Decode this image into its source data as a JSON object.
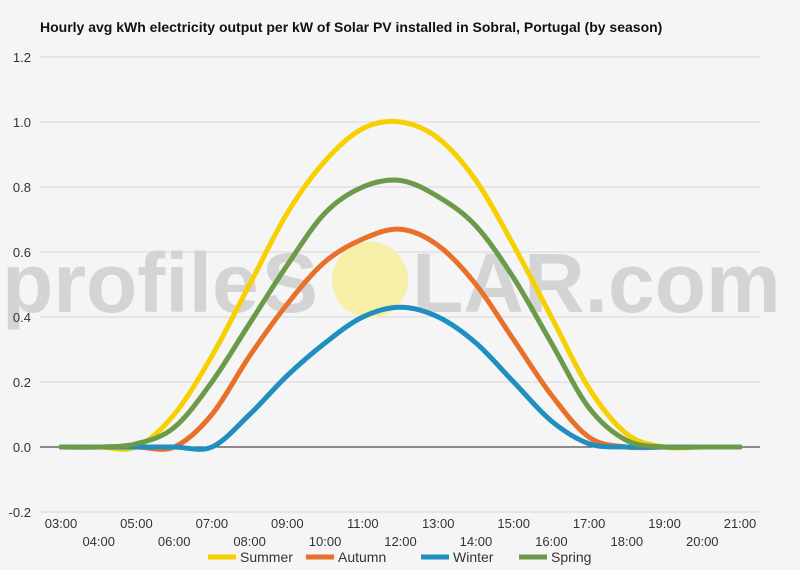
{
  "chart_data": {
    "type": "line",
    "title": "Hourly avg kWh electricity output per kW of Solar PV installed in Sobral, Portugal (by season)",
    "xlabel": "",
    "ylabel": "",
    "ylim": [
      -0.2,
      1.2
    ],
    "yticks": [
      -0.2,
      0.0,
      0.2,
      0.4,
      0.6,
      0.8,
      1.0,
      1.2
    ],
    "ytick_labels": [
      "-0.2",
      "0.0",
      "0.2",
      "0.4",
      "0.6",
      "0.8",
      "1.0",
      "1.2"
    ],
    "x": [
      "03:00",
      "04:00",
      "05:00",
      "06:00",
      "07:00",
      "08:00",
      "09:00",
      "10:00",
      "11:00",
      "12:00",
      "13:00",
      "14:00",
      "15:00",
      "16:00",
      "17:00",
      "18:00",
      "19:00",
      "20:00",
      "21:00"
    ],
    "grid": true,
    "legend_position": "bottom",
    "series": [
      {
        "name": "Summer",
        "color": "#f7d000",
        "values": [
          0.0,
          0.0,
          0.0,
          0.1,
          0.28,
          0.5,
          0.72,
          0.88,
          0.98,
          1.0,
          0.95,
          0.82,
          0.62,
          0.4,
          0.18,
          0.04,
          0.0,
          0.0,
          0.0
        ]
      },
      {
        "name": "Autumn",
        "color": "#e8702a",
        "values": [
          0.0,
          0.0,
          0.0,
          0.0,
          0.1,
          0.28,
          0.44,
          0.57,
          0.64,
          0.67,
          0.62,
          0.5,
          0.33,
          0.16,
          0.03,
          0.0,
          0.0,
          0.0,
          0.0
        ]
      },
      {
        "name": "Winter",
        "color": "#1f8fc0",
        "values": [
          0.0,
          0.0,
          0.0,
          0.0,
          0.0,
          0.1,
          0.22,
          0.32,
          0.4,
          0.43,
          0.4,
          0.32,
          0.2,
          0.08,
          0.01,
          0.0,
          0.0,
          0.0,
          0.0
        ]
      },
      {
        "name": "Spring",
        "color": "#6a9a4a",
        "values": [
          0.0,
          0.0,
          0.01,
          0.06,
          0.2,
          0.38,
          0.56,
          0.72,
          0.8,
          0.82,
          0.77,
          0.68,
          0.52,
          0.32,
          0.12,
          0.02,
          0.0,
          0.0,
          0.0
        ]
      }
    ]
  },
  "watermark": {
    "left": "profile",
    "mid": "S",
    "mid_hidden": "O",
    "right": "LAR.com",
    "sun_color": "#f6efa8"
  }
}
